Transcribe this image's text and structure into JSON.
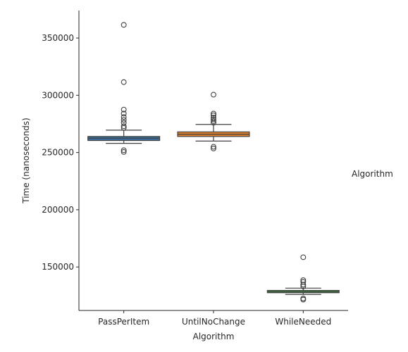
{
  "chart_data": {
    "type": "box",
    "xlabel": "Algorithm",
    "ylabel": "Time (nanoseconds)",
    "legend_title": "Algorithm",
    "legend_placement": "right",
    "grid": false,
    "ylim": [
      112000,
      374000
    ],
    "yticks": [
      150000,
      200000,
      250000,
      300000,
      350000
    ],
    "ytick_labels": [
      "150000",
      "200000",
      "250000",
      "300000",
      "350000"
    ],
    "categories": [
      "PassPerItem",
      "UntilNoChange",
      "WhileNeeded"
    ],
    "boxes": [
      {
        "category": "PassPerItem",
        "color": "#3a6d9a",
        "whisker_low": 258000,
        "q1": 260500,
        "median": 262500,
        "q3": 264000,
        "whisker_high": 269500,
        "outliers": [
          361500,
          311500,
          287500,
          284000,
          281000,
          278500,
          276000,
          273000,
          271500,
          252000,
          250500
        ]
      },
      {
        "category": "UntilNoChange",
        "color": "#e1812c",
        "whisker_low": 260000,
        "q1": 264000,
        "median": 266000,
        "q3": 268000,
        "whisker_high": 274500,
        "outliers": [
          300500,
          284000,
          282500,
          280500,
          279000,
          277500,
          276000,
          255000,
          253500
        ]
      },
      {
        "category": "WhileNeeded",
        "color": "#3a923a",
        "whisker_low": 126000,
        "q1": 127500,
        "median": 128500,
        "q3": 129500,
        "whisker_high": 131500,
        "outliers": [
          158500,
          138500,
          137000,
          134500,
          133000,
          122500,
          121500
        ]
      }
    ]
  }
}
